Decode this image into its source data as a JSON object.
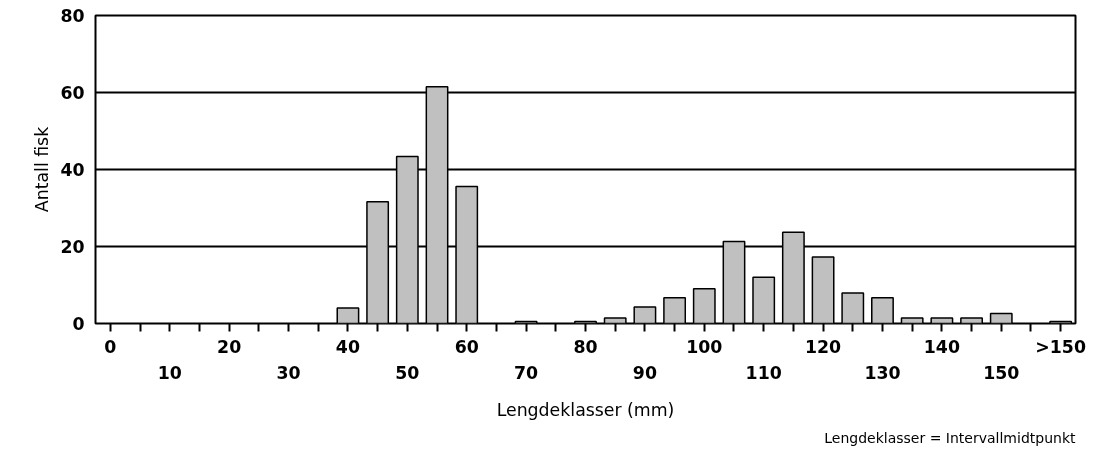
{
  "chart_data": {
    "type": "bar",
    "xlabel": "Lengdeklasser (mm)",
    "ylabel": "Antall fisk",
    "annotations": [
      "Lengdeklasser = Intervallmidtpunkt"
    ],
    "categories": [
      "0",
      null,
      "10",
      null,
      "20",
      null,
      "30",
      null,
      "40",
      null,
      "50",
      null,
      "60",
      null,
      "70",
      null,
      "80",
      null,
      "90",
      null,
      "100",
      null,
      "110",
      null,
      "120",
      null,
      "130",
      null,
      "140",
      null,
      "150",
      null,
      ">150"
    ],
    "values": [
      null,
      null,
      null,
      null,
      null,
      null,
      null,
      null,
      4.0,
      31.6,
      43.4,
      61.5,
      35.6,
      null,
      0.5,
      null,
      0.5,
      1.4,
      4.3,
      6.7,
      9.0,
      21.3,
      12.0,
      23.7,
      17.3,
      7.9,
      6.7,
      1.4,
      1.4,
      1.4,
      2.6,
      null,
      0.5
    ],
    "color": "#c0c0c0",
    "ylim": [
      0,
      80
    ],
    "yticks": [
      0,
      20,
      40,
      60,
      80
    ],
    "grid": "y"
  }
}
